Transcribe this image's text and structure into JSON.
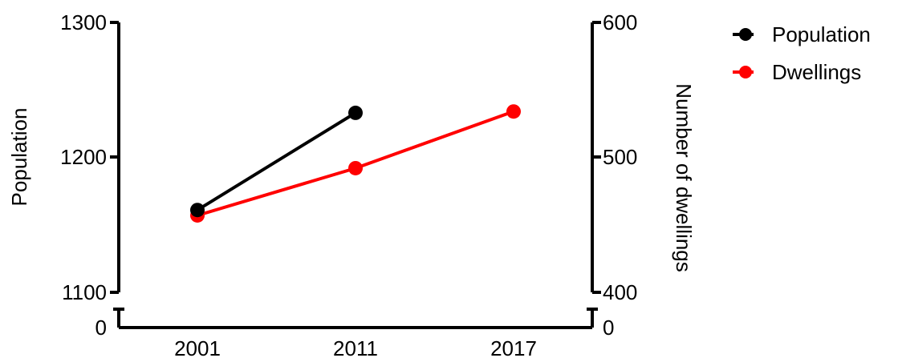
{
  "chart_data": {
    "type": "line",
    "title": "",
    "xlabel": "",
    "ylabel": "Population",
    "y2label": "Number of dwellings",
    "categories": [
      "2001",
      "2011",
      "2017"
    ],
    "ylim": [
      1100,
      1300
    ],
    "y2lim": [
      400,
      600
    ],
    "yticks": [
      "1300",
      "1200",
      "1100",
      "0"
    ],
    "y2ticks": [
      "600",
      "500",
      "400",
      "0"
    ],
    "axis_break": true,
    "grid": false,
    "legend_position": "top-right",
    "series": [
      {
        "name": "Population",
        "axis": "left",
        "color": "#000000",
        "x": [
          "2001",
          "2011"
        ],
        "values": [
          1161,
          1233
        ]
      },
      {
        "name": "Dwellings",
        "axis": "right",
        "color": "#ff0000",
        "x": [
          "2001",
          "2011",
          "2017"
        ],
        "values": [
          457,
          492,
          534
        ]
      }
    ]
  }
}
